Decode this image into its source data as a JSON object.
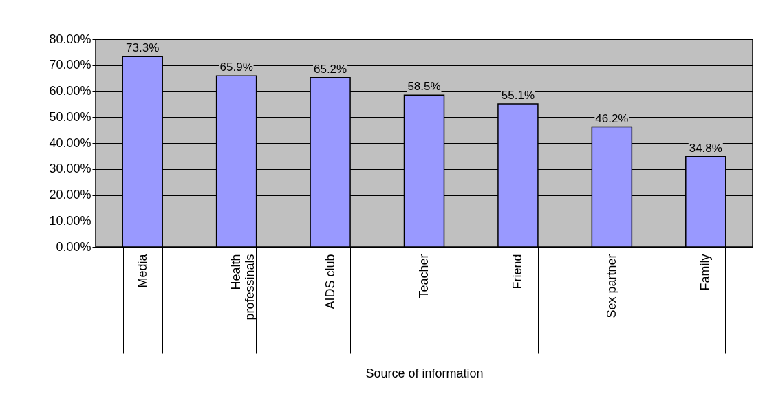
{
  "chart_data": {
    "type": "bar",
    "xlabel": "Source of information",
    "categories": [
      "Media",
      "Health professinals",
      "AIDS club",
      "Teacher",
      "Friend",
      "Sex partner",
      "Family"
    ],
    "values": [
      73.3,
      65.9,
      65.2,
      58.5,
      55.1,
      46.2,
      34.8
    ],
    "value_labels": [
      "73.3%",
      "65.9%",
      "65.2%",
      "58.5%",
      "55.1%",
      "46.2%",
      "34.8%"
    ],
    "color": "#9999ff",
    "ylim": [
      0,
      80
    ],
    "yticks": [
      {
        "value": 0,
        "label": "0.00%"
      },
      {
        "value": 10,
        "label": "10.00%"
      },
      {
        "value": 20,
        "label": "20.00%"
      },
      {
        "value": 30,
        "label": "30.00%"
      },
      {
        "value": 40,
        "label": "40.00%"
      },
      {
        "value": 50,
        "label": "50.00%"
      },
      {
        "value": 60,
        "label": "60.00%"
      },
      {
        "value": 70,
        "label": "70.00%"
      },
      {
        "value": 80,
        "label": "80.00%"
      }
    ],
    "grid": "y"
  }
}
